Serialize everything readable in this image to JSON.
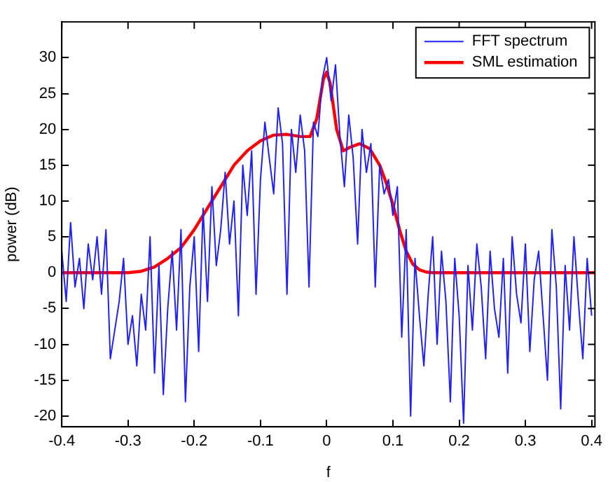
{
  "chart_data": {
    "type": "line",
    "xlabel": "f",
    "ylabel": "power (dB)",
    "xlim": [
      -0.4,
      0.405
    ],
    "ylim": [
      -21.5,
      35
    ],
    "xticks": [
      -0.4,
      -0.3,
      -0.2,
      -0.1,
      0,
      0.1,
      0.2,
      0.3,
      0.4
    ],
    "yticks": [
      -20,
      -15,
      -10,
      -5,
      0,
      5,
      10,
      15,
      20,
      25,
      30
    ],
    "grid": false,
    "legend": "top right",
    "marker": "none",
    "line_style": "solid",
    "series": [
      {
        "name": "FFT spectrum",
        "color": "#2020ff",
        "x": [
          -0.4,
          -0.3933,
          -0.3867,
          -0.38,
          -0.3733,
          -0.3667,
          -0.36,
          -0.3533,
          -0.3467,
          -0.34,
          -0.3333,
          -0.3267,
          -0.32,
          -0.3133,
          -0.3067,
          -0.3,
          -0.2933,
          -0.2867,
          -0.28,
          -0.2733,
          -0.2667,
          -0.26,
          -0.2533,
          -0.2467,
          -0.24,
          -0.2333,
          -0.2267,
          -0.22,
          -0.2133,
          -0.2067,
          -0.2,
          -0.1933,
          -0.1867,
          -0.18,
          -0.1733,
          -0.1667,
          -0.16,
          -0.1533,
          -0.1467,
          -0.14,
          -0.1333,
          -0.1267,
          -0.12,
          -0.1133,
          -0.1067,
          -0.1,
          -0.0933,
          -0.0867,
          -0.08,
          -0.0733,
          -0.0667,
          -0.06,
          -0.0533,
          -0.0467,
          -0.04,
          -0.0333,
          -0.0267,
          -0.02,
          -0.0133,
          -0.0067,
          0,
          0.0067,
          0.0133,
          0.02,
          0.0267,
          0.0333,
          0.04,
          0.0467,
          0.0533,
          0.06,
          0.0667,
          0.0733,
          0.08,
          0.0867,
          0.0933,
          0.1,
          0.1067,
          0.1133,
          0.12,
          0.1267,
          0.1333,
          0.14,
          0.1467,
          0.1533,
          0.16,
          0.1667,
          0.1733,
          0.18,
          0.1867,
          0.1933,
          0.2,
          0.2067,
          0.2133,
          0.22,
          0.2267,
          0.2333,
          0.24,
          0.2467,
          0.2533,
          0.26,
          0.2667,
          0.2733,
          0.28,
          0.2867,
          0.2933,
          0.3,
          0.3067,
          0.3133,
          0.32,
          0.3267,
          0.3333,
          0.34,
          0.3467,
          0.3533,
          0.36,
          0.3667,
          0.3733,
          0.38,
          0.3867,
          0.3933,
          0.4
        ],
        "values": [
          3,
          -4,
          7,
          -2,
          2,
          -5,
          4,
          -1,
          5,
          -3,
          6,
          -12,
          -8,
          -4,
          2,
          -10,
          -6,
          -13,
          -3,
          -8,
          5,
          -14,
          1,
          -17,
          -5,
          3,
          -8,
          6,
          -18,
          -2,
          5,
          -11,
          9,
          -4,
          12,
          1,
          6,
          14,
          4,
          10,
          -6,
          15,
          8,
          17,
          -3,
          13,
          21,
          16,
          11,
          23,
          18,
          -3,
          20,
          14,
          22,
          17,
          -2,
          21,
          19,
          27,
          30,
          24,
          29,
          19,
          12,
          22,
          16,
          4,
          20,
          14,
          18,
          -2,
          15,
          11,
          13,
          8,
          12,
          -9,
          6,
          -20,
          2,
          -6,
          -13,
          -3,
          5,
          -10,
          3,
          -4,
          -18,
          2,
          -6,
          -21,
          1,
          -8,
          4,
          -2,
          -12,
          3,
          -5,
          -9,
          2,
          -14,
          5,
          -3,
          -7,
          4,
          -11,
          -1,
          3,
          -6,
          -15,
          6,
          -2,
          -19,
          1,
          -8,
          5,
          -4,
          -12,
          2,
          -6
        ]
      },
      {
        "name": "SML estimation",
        "color": "#ff0000",
        "x": [
          -0.4,
          -0.3,
          -0.28,
          -0.26,
          -0.24,
          -0.22,
          -0.2,
          -0.18,
          -0.16,
          -0.14,
          -0.12,
          -0.1,
          -0.08,
          -0.06,
          -0.04,
          -0.025,
          -0.015,
          -0.005,
          0,
          0.005,
          0.015,
          0.025,
          0.035,
          0.05,
          0.065,
          0.08,
          0.09,
          0.1,
          0.11,
          0.12,
          0.13,
          0.14,
          0.15,
          0.16,
          0.2,
          0.405
        ],
        "values": [
          0,
          0,
          0.2,
          0.8,
          2,
          3.5,
          6,
          9,
          12,
          15,
          17,
          18.4,
          19.2,
          19.3,
          19,
          19,
          21.5,
          27,
          28,
          26.5,
          20,
          17,
          17.5,
          18,
          17.3,
          15,
          12.5,
          9.5,
          6,
          3,
          1.2,
          0.4,
          0.1,
          0,
          0,
          0
        ]
      }
    ]
  }
}
